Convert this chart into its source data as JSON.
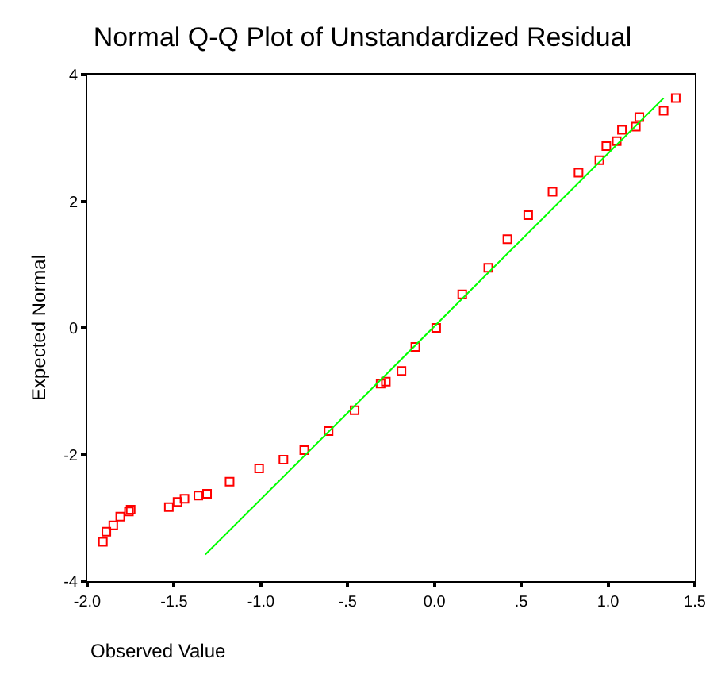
{
  "chart_data": {
    "type": "scatter",
    "title": "Normal Q-Q Plot of Unstandardized Residual",
    "xlabel": "Observed Value",
    "ylabel": "Expected Normal",
    "xlim": [
      -2.0,
      1.5
    ],
    "ylim": [
      -4,
      4
    ],
    "xticks": [
      {
        "value": -2.0,
        "label": "-2.0"
      },
      {
        "value": -1.5,
        "label": "-1.5"
      },
      {
        "value": -1.0,
        "label": "-1.0"
      },
      {
        "value": -0.5,
        "label": "-.5"
      },
      {
        "value": 0,
        "label": "0.0"
      },
      {
        "value": 0.5,
        "label": ".5"
      },
      {
        "value": 1.0,
        "label": "1.0"
      },
      {
        "value": 1.5,
        "label": "1.5"
      }
    ],
    "yticks": [
      -4,
      -2,
      0,
      2,
      4
    ],
    "series": [
      {
        "marker": "square",
        "color": "#ff0000",
        "x": [
          -1.91,
          -1.89,
          -1.85,
          -1.81,
          -1.76,
          -1.75,
          -1.53,
          -1.48,
          -1.44,
          -1.36,
          -1.31,
          -1.18,
          -1.01,
          -0.87,
          -0.75,
          -0.61,
          -0.46,
          -0.31,
          -0.28,
          -0.19,
          -0.11,
          0.01,
          0.16,
          0.31,
          0.42,
          0.54,
          0.68,
          0.83,
          0.95,
          0.99,
          1.05,
          1.08,
          1.16,
          1.18,
          1.32,
          1.39
        ],
        "values": [
          -3.38,
          -3.22,
          -3.12,
          -2.98,
          -2.9,
          -2.87,
          -2.83,
          -2.75,
          -2.7,
          -2.65,
          -2.62,
          -2.43,
          -2.22,
          -2.08,
          -1.93,
          -1.63,
          -1.3,
          -0.88,
          -0.85,
          -0.68,
          -0.3,
          0.0,
          0.53,
          0.95,
          1.4,
          1.78,
          2.15,
          2.45,
          2.65,
          2.87,
          2.95,
          3.13,
          3.18,
          3.33,
          3.43,
          3.63
        ]
      },
      {
        "type": "line",
        "marker": "none",
        "line_style": "solid",
        "color": "#00ff00",
        "x": [
          -1.32,
          1.32
        ],
        "values": [
          -3.58,
          3.63
        ]
      }
    ]
  }
}
